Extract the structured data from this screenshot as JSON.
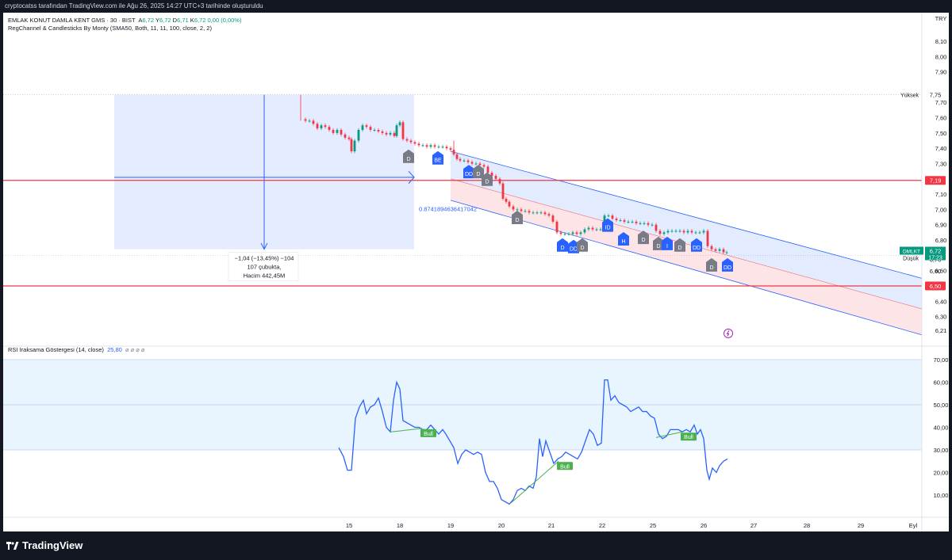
{
  "header": {
    "text": "cryptocatss tarafından TradingView.com ile Ağu 26, 2025 14:27 UTC+3 tarihinde oluşturuldu"
  },
  "legend": {
    "symbol": "EMLAK KONUT DAMLA KENT GMS · 30 · BIST",
    "o_label": "A",
    "o": "6,72",
    "h_label": "Y",
    "h": "6,72",
    "l_label": "D",
    "l": "6,71",
    "c_label": "K",
    "c": "6,72",
    "change": "0,00 (0,00%)",
    "indicator": "RegChannel & Candlesticks By Monty (SMA50, Both, 11, 11, 100, close, 2, 2)"
  },
  "rsi_legend": {
    "name": "RSI Iraksama Göstergesi (14, close)",
    "value": "25,80",
    "extra": "⌀ ⌀ ⌀ ⌀"
  },
  "footer": {
    "brand": "TradingView"
  },
  "colors": {
    "up": "#089981",
    "down": "#f23645",
    "blue": "#2962ff",
    "rsi": "#2962ff",
    "bull": "#4caf50",
    "grey": "#787b86"
  },
  "chart_data": [
    {
      "type": "candlestick",
      "currency": "TRY",
      "y_ticks": [
        "8,10",
        "8,00",
        "7,90",
        "7,75",
        "7,70",
        "7,60",
        "7,50",
        "7,40",
        "7,30",
        "7,19",
        "7,10",
        "7,00",
        "6,90",
        "6,80",
        "6,72",
        "6,70",
        "6,60",
        "6,50",
        "6,40",
        "6,30",
        "6,21"
      ],
      "ylim": [
        6.16,
        8.16
      ],
      "price_labels": {
        "high_label": "Yüksek",
        "high": "7,75",
        "low_label": "Düşük",
        "low": "6,70",
        "symbol_tag": "DMLKT",
        "last": "6,72",
        "countdown": "17:23",
        "h_line_1": "7,19",
        "h_line_2": "6,50"
      },
      "horizontal_lines": [
        7.19,
        6.5
      ],
      "close_path": [
        [
          380,
          7.59
        ],
        [
          385,
          7.58
        ],
        [
          390,
          7.58
        ],
        [
          395,
          7.56
        ],
        [
          400,
          7.53
        ],
        [
          405,
          7.55
        ],
        [
          410,
          7.54
        ],
        [
          415,
          7.52
        ],
        [
          420,
          7.5
        ],
        [
          425,
          7.52
        ],
        [
          430,
          7.49
        ],
        [
          435,
          7.47
        ],
        [
          440,
          7.46
        ],
        [
          443,
          7.38
        ],
        [
          447,
          7.45
        ],
        [
          452,
          7.52
        ],
        [
          457,
          7.55
        ],
        [
          462,
          7.54
        ],
        [
          467,
          7.52
        ],
        [
          472,
          7.52
        ],
        [
          477,
          7.51
        ],
        [
          482,
          7.5
        ],
        [
          487,
          7.49
        ],
        [
          492,
          7.5
        ],
        [
          497,
          7.48
        ],
        [
          500,
          7.55
        ],
        [
          504,
          7.57
        ],
        [
          508,
          7.46
        ],
        [
          513,
          7.45
        ],
        [
          518,
          7.44
        ],
        [
          523,
          7.43
        ],
        [
          528,
          7.42
        ],
        [
          533,
          7.42
        ],
        [
          538,
          7.41
        ],
        [
          543,
          7.42
        ],
        [
          548,
          7.41
        ],
        [
          553,
          7.41
        ],
        [
          558,
          7.41
        ],
        [
          563,
          7.4
        ],
        [
          568,
          7.39
        ],
        [
          572,
          7.36
        ],
        [
          576,
          7.33
        ],
        [
          580,
          7.32
        ],
        [
          585,
          7.32
        ],
        [
          590,
          7.31
        ],
        [
          595,
          7.3
        ],
        [
          600,
          7.3
        ],
        [
          605,
          7.29
        ],
        [
          610,
          7.28
        ],
        [
          615,
          7.24
        ],
        [
          620,
          7.22
        ],
        [
          625,
          7.2
        ],
        [
          630,
          7.17
        ],
        [
          634,
          7.07
        ],
        [
          638,
          7.05
        ],
        [
          642,
          7.02
        ],
        [
          647,
          7.0
        ],
        [
          652,
          7.0
        ],
        [
          657,
          6.99
        ],
        [
          662,
          6.99
        ],
        [
          667,
          6.98
        ],
        [
          672,
          6.98
        ],
        [
          677,
          6.98
        ],
        [
          682,
          6.98
        ],
        [
          687,
          6.97
        ],
        [
          692,
          6.96
        ],
        [
          697,
          6.92
        ],
        [
          702,
          6.85
        ],
        [
          707,
          6.84
        ],
        [
          712,
          6.84
        ],
        [
          717,
          6.84
        ],
        [
          722,
          6.85
        ],
        [
          727,
          6.84
        ],
        [
          732,
          6.85
        ],
        [
          737,
          6.87
        ],
        [
          742,
          6.88
        ],
        [
          747,
          6.87
        ],
        [
          752,
          6.87
        ],
        [
          757,
          6.87
        ],
        [
          762,
          6.96
        ],
        [
          767,
          6.96
        ],
        [
          772,
          6.94
        ],
        [
          777,
          6.93
        ],
        [
          782,
          6.93
        ],
        [
          787,
          6.92
        ],
        [
          792,
          6.92
        ],
        [
          797,
          6.92
        ],
        [
          802,
          6.91
        ],
        [
          807,
          6.91
        ],
        [
          812,
          6.91
        ],
        [
          817,
          6.9
        ],
        [
          822,
          6.9
        ],
        [
          827,
          6.86
        ],
        [
          832,
          6.84
        ],
        [
          837,
          6.85
        ],
        [
          842,
          6.86
        ],
        [
          847,
          6.86
        ],
        [
          852,
          6.86
        ],
        [
          857,
          6.86
        ],
        [
          862,
          6.85
        ],
        [
          867,
          6.86
        ],
        [
          872,
          6.85
        ],
        [
          877,
          6.85
        ],
        [
          882,
          6.85
        ],
        [
          887,
          6.86
        ],
        [
          892,
          6.76
        ],
        [
          897,
          6.74
        ],
        [
          902,
          6.73
        ],
        [
          907,
          6.74
        ],
        [
          912,
          6.72
        ],
        [
          916,
          6.72
        ]
      ],
      "markers": [
        {
          "label": "D",
          "x": 515,
          "y": 7.34,
          "c": "grey"
        },
        {
          "label": "BE",
          "x": 552,
          "y": 7.33,
          "c": "blue"
        },
        {
          "label": "DD",
          "x": 591,
          "y": 7.24,
          "c": "blue"
        },
        {
          "label": "D",
          "x": 603,
          "y": 7.24,
          "c": "grey"
        },
        {
          "label": "D",
          "x": 614,
          "y": 7.19,
          "c": "grey"
        },
        {
          "label": "D",
          "x": 652,
          "y": 6.94,
          "c": "grey"
        },
        {
          "label": "ID",
          "x": 766,
          "y": 6.89,
          "c": "blue"
        },
        {
          "label": "D",
          "x": 709,
          "y": 6.76,
          "c": "blue"
        },
        {
          "label": "DD",
          "x": 723,
          "y": 6.75,
          "c": "blue"
        },
        {
          "label": "D",
          "x": 734,
          "y": 6.76,
          "c": "grey"
        },
        {
          "label": "H",
          "x": 786,
          "y": 6.8,
          "c": "blue"
        },
        {
          "label": "D",
          "x": 811,
          "y": 6.81,
          "c": "grey"
        },
        {
          "label": "D",
          "x": 830,
          "y": 6.77,
          "c": "grey"
        },
        {
          "label": "I",
          "x": 841,
          "y": 6.77,
          "c": "blue"
        },
        {
          "label": "D",
          "x": 857,
          "y": 6.76,
          "c": "grey"
        },
        {
          "label": "DD",
          "x": 878,
          "y": 6.76,
          "c": "blue"
        },
        {
          "label": "D",
          "x": 897,
          "y": 6.63,
          "c": "grey"
        },
        {
          "label": "DD",
          "x": 917,
          "y": 6.63,
          "c": "blue"
        }
      ],
      "channel_label": "0.8741894636417042",
      "measure": {
        "line1": "−1,04 (−13,45%) −104",
        "line2": "107 çubukta,",
        "line3": "Hacim 442,45M"
      }
    },
    {
      "type": "line",
      "name": "RSI Iraksama Göstergesi (14, close)",
      "y_ticks": [
        "70,00",
        "60,00",
        "50,00",
        "40,00",
        "30,00",
        "20,00",
        "10,00"
      ],
      "ylim": [
        -4,
        70.5
      ],
      "bands": [
        30,
        50,
        70
      ],
      "points": [
        [
          427,
          31
        ],
        [
          433,
          27
        ],
        [
          438,
          21
        ],
        [
          443,
          21
        ],
        [
          448,
          44
        ],
        [
          453,
          49
        ],
        [
          458,
          52
        ],
        [
          462,
          46
        ],
        [
          467,
          49
        ],
        [
          472,
          50
        ],
        [
          477,
          53
        ],
        [
          482,
          47
        ],
        [
          487,
          40
        ],
        [
          492,
          38
        ],
        [
          496,
          52
        ],
        [
          500,
          60
        ],
        [
          504,
          57
        ],
        [
          508,
          43
        ],
        [
          513,
          42
        ],
        [
          518,
          41
        ],
        [
          523,
          40
        ],
        [
          528,
          40
        ],
        [
          533,
          39
        ],
        [
          538,
          39
        ],
        [
          543,
          41
        ],
        [
          548,
          39
        ],
        [
          553,
          37
        ],
        [
          558,
          39
        ],
        [
          562,
          37
        ],
        [
          567,
          34
        ],
        [
          572,
          31
        ],
        [
          577,
          24
        ],
        [
          582,
          28
        ],
        [
          587,
          30
        ],
        [
          592,
          29
        ],
        [
          597,
          28
        ],
        [
          602,
          29
        ],
        [
          607,
          28
        ],
        [
          612,
          20
        ],
        [
          617,
          16
        ],
        [
          622,
          16
        ],
        [
          627,
          13
        ],
        [
          632,
          8
        ],
        [
          637,
          7
        ],
        [
          642,
          6
        ],
        [
          647,
          8
        ],
        [
          652,
          12
        ],
        [
          657,
          13
        ],
        [
          662,
          12
        ],
        [
          667,
          14
        ],
        [
          672,
          13
        ],
        [
          676,
          18
        ],
        [
          680,
          35
        ],
        [
          684,
          27
        ],
        [
          688,
          34
        ],
        [
          693,
          29
        ],
        [
          698,
          24
        ],
        [
          703,
          26
        ],
        [
          708,
          27
        ],
        [
          713,
          29
        ],
        [
          718,
          28
        ],
        [
          723,
          27
        ],
        [
          728,
          26
        ],
        [
          733,
          29
        ],
        [
          738,
          34
        ],
        [
          743,
          39
        ],
        [
          748,
          37
        ],
        [
          753,
          32
        ],
        [
          758,
          33
        ],
        [
          762,
          61
        ],
        [
          766,
          61
        ],
        [
          770,
          52
        ],
        [
          775,
          54
        ],
        [
          780,
          51
        ],
        [
          785,
          50
        ],
        [
          790,
          49
        ],
        [
          795,
          47
        ],
        [
          800,
          48
        ],
        [
          805,
          49
        ],
        [
          810,
          47
        ],
        [
          815,
          47
        ],
        [
          820,
          45
        ],
        [
          825,
          44
        ],
        [
          830,
          37
        ],
        [
          835,
          35
        ],
        [
          840,
          36
        ],
        [
          845,
          39
        ],
        [
          850,
          39
        ],
        [
          855,
          39
        ],
        [
          860,
          38
        ],
        [
          865,
          39
        ],
        [
          870,
          38
        ],
        [
          875,
          41
        ],
        [
          879,
          37
        ],
        [
          883,
          39
        ],
        [
          887,
          35
        ],
        [
          891,
          21
        ],
        [
          894,
          17
        ],
        [
          898,
          22
        ],
        [
          903,
          20
        ],
        [
          907,
          23
        ],
        [
          912,
          25
        ],
        [
          917,
          26
        ]
      ],
      "divergences": [
        {
          "x1": 493,
          "y1": 38,
          "x2": 532,
          "y2": 39.5,
          "label": "Bull"
        },
        {
          "x1": 644,
          "y1": 6.5,
          "x2": 704,
          "y2": 25,
          "label": "Bull"
        },
        {
          "x1": 827,
          "y1": 35.5,
          "x2": 860,
          "y2": 38,
          "label": "Bull"
        }
      ]
    }
  ],
  "x_axis": {
    "ticks": [
      "15",
      "18",
      "19",
      "20",
      "21",
      "22",
      "25",
      "26",
      "27",
      "28",
      "29",
      "Eyl"
    ]
  }
}
